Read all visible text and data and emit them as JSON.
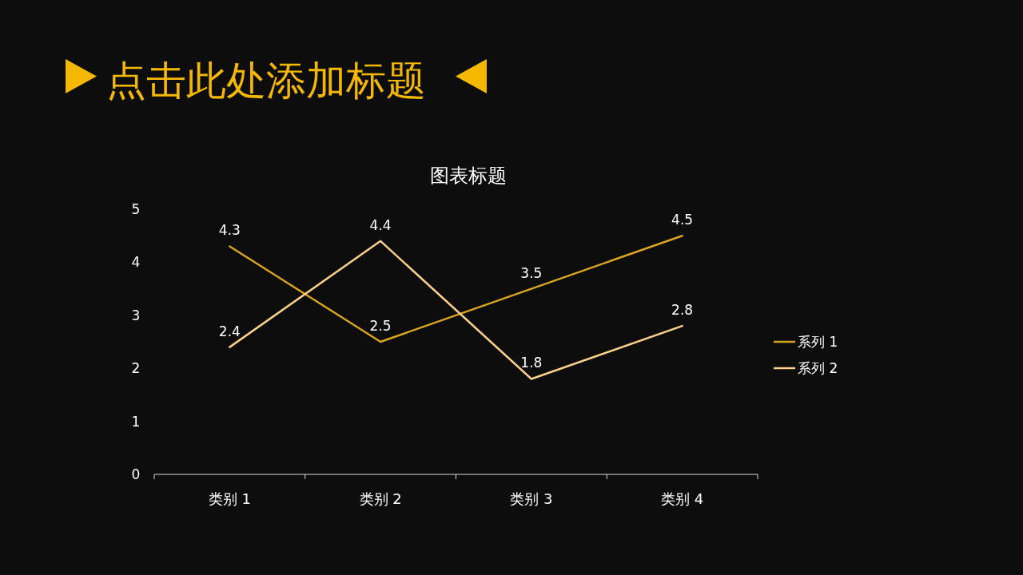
{
  "chart_data": {
    "type": "line",
    "title": "点击此处添加标题",
    "subtitle": "图表标题",
    "categories": [
      "类别 1",
      "类别 2",
      "类别 3",
      "类别 4"
    ],
    "series": [
      {
        "name": "系列 1",
        "color": "#d9a520",
        "values": [
          4.3,
          2.5,
          3.5,
          4.5
        ]
      },
      {
        "name": "系列 2",
        "color": "#fbd08c",
        "values": [
          2.4,
          4.4,
          1.8,
          2.8
        ]
      }
    ],
    "ylim": [
      0,
      5
    ],
    "yticks": [
      0,
      1,
      2,
      3,
      4,
      5
    ],
    "data_labels": true,
    "legend": "right"
  }
}
